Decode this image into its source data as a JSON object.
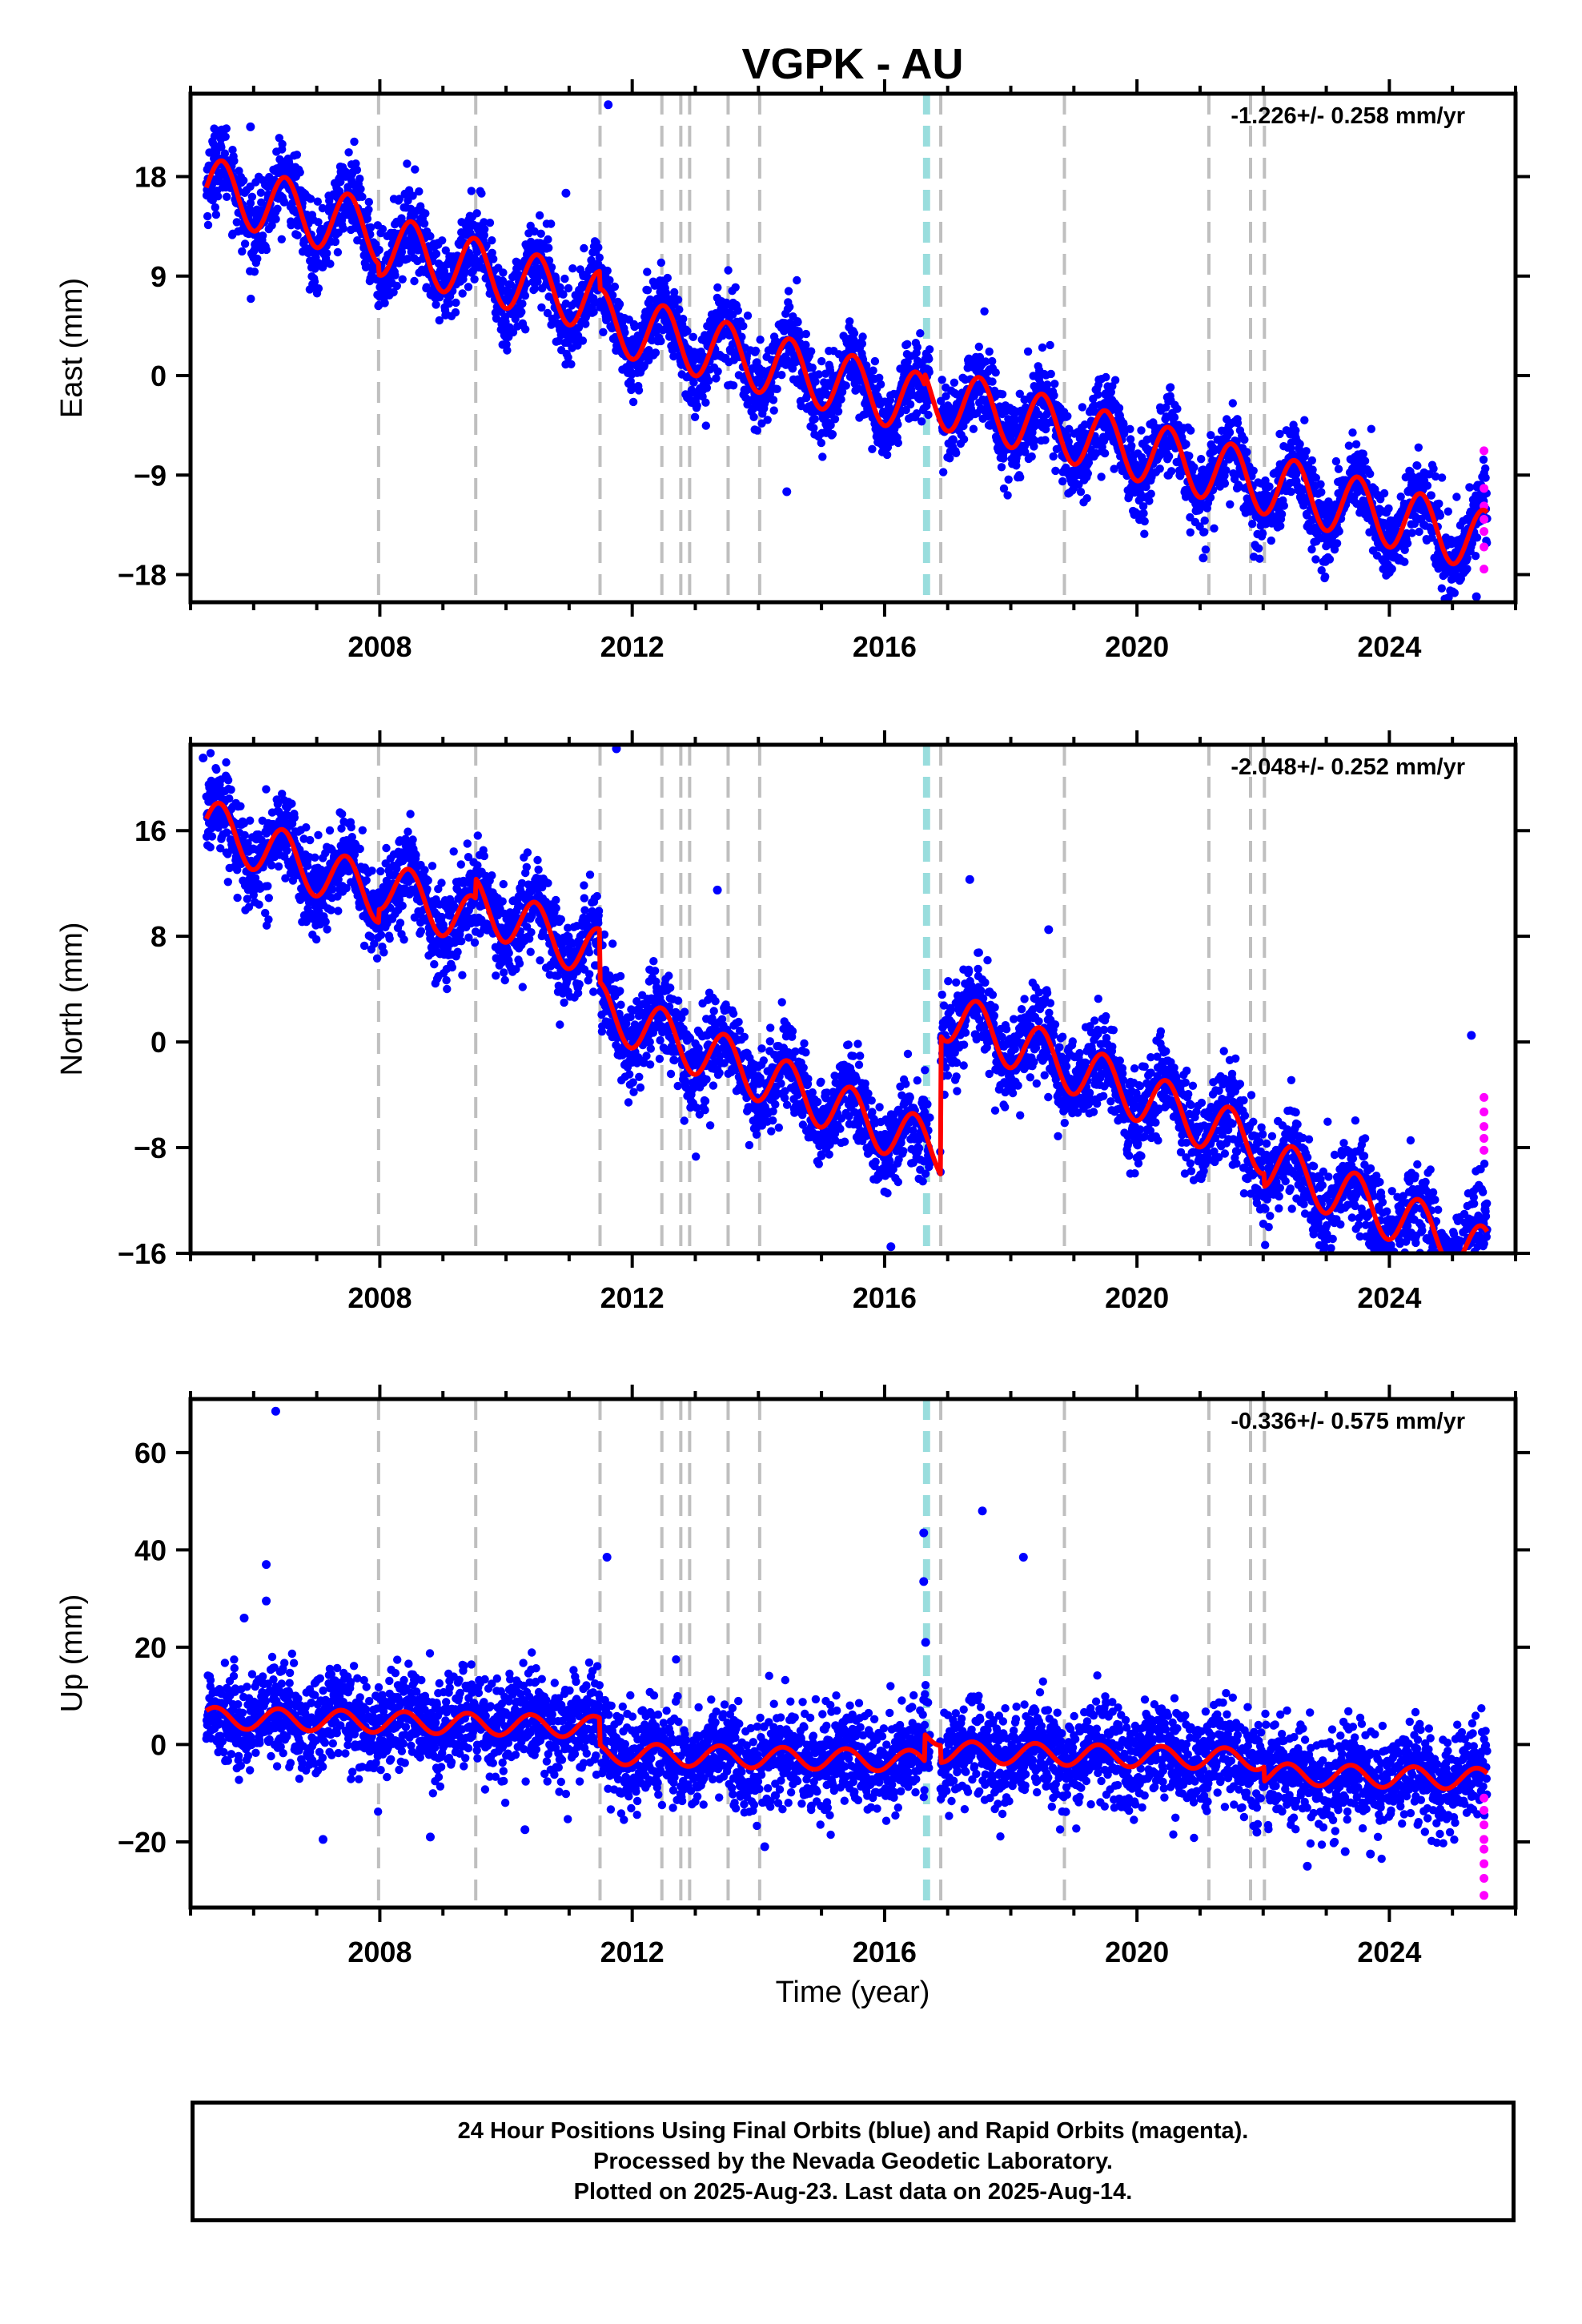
{
  "title": "VGPK - AU",
  "colors": {
    "final_orbits": "#0000ff",
    "rapid_orbits": "#ff00ff",
    "model_fit": "#ff0000",
    "event_line": "#bfbfbf",
    "equipment_change_line": "#99dddd"
  },
  "x_axis": {
    "label": "Time (year)",
    "range": [
      2005.0,
      2026.0
    ],
    "ticks": [
      2008,
      2012,
      2016,
      2020,
      2024
    ]
  },
  "event_lines": [
    2007.98,
    2009.52,
    2011.49,
    2012.47,
    2012.77,
    2012.91,
    2013.52,
    2014.02,
    2016.89,
    2018.85,
    2021.14,
    2021.8,
    2022.02
  ],
  "equipment_change_lines": [
    2016.64,
    2016.69
  ],
  "footer": {
    "line1": "24 Hour Positions Using Final Orbits (blue) and Rapid Orbits (magenta).",
    "line2": "Processed by the Nevada Geodetic Laboratory.",
    "line3": "Plotted on 2025-Aug-23. Last data on 2025-Aug-14."
  },
  "chart_data": [
    {
      "type": "scatter",
      "component": "east",
      "ylabel": "East (mm)",
      "rate": "-1.226+/- 0.258 mm/yr",
      "ylim": [
        -20.5,
        25.5
      ],
      "yticks": [
        -18,
        -9,
        0,
        9,
        18
      ],
      "x_start": 2005.25,
      "x_end": 2025.55,
      "model": {
        "base": 17.0,
        "trend": -1.5,
        "annual_amplitude": 2.8,
        "phase": 0.0,
        "offsets": [
          [
            2007.98,
            -1.0
          ],
          [
            2011.49,
            -1.6
          ],
          [
            2016.64,
            1.0
          ]
        ]
      },
      "scatter_spread": 1.8,
      "outliers": [
        [
          2005.95,
          22.5
        ],
        [
          2011.62,
          24.5
        ],
        [
          2010.95,
          16.5
        ],
        [
          2013.3,
          4.5
        ],
        [
          2014.45,
          -10.5
        ],
        [
          2021.05,
          -16.5
        ],
        [
          2025.38,
          -20.0
        ]
      ],
      "rapid_points": [
        [
          2025.5,
          -6.8
        ],
        [
          2025.5,
          -10.2
        ],
        [
          2025.5,
          -11.8
        ],
        [
          2025.5,
          -13.0
        ],
        [
          2025.5,
          -14.1
        ],
        [
          2025.5,
          -15.5
        ],
        [
          2025.5,
          -17.5
        ]
      ]
    },
    {
      "type": "scatter",
      "component": "north",
      "ylabel": "North (mm)",
      "rate": "-2.048+/- 0.252 mm/yr",
      "ylim": [
        -16.0,
        22.5
      ],
      "yticks": [
        -16,
        -8,
        0,
        8,
        16
      ],
      "x_start": 2005.25,
      "x_end": 2025.55,
      "model": {
        "base": 16.5,
        "trend": -2.0,
        "annual_amplitude": 2.0,
        "phase": 0.2,
        "offsets": [
          [
            2007.98,
            1.0
          ],
          [
            2009.52,
            1.5
          ],
          [
            2011.49,
            -4.0
          ],
          [
            2016.89,
            10.5
          ],
          [
            2022.02,
            -1.0
          ]
        ]
      },
      "scatter_spread": 1.7,
      "outliers": [
        [
          2005.2,
          21.5
        ],
        [
          2011.75,
          22.2
        ],
        [
          2013.35,
          11.5
        ],
        [
          2017.35,
          12.3
        ],
        [
          2018.6,
          8.5
        ],
        [
          2016.1,
          -15.5
        ],
        [
          2025.3,
          0.5
        ]
      ],
      "rapid_points": [
        [
          2025.5,
          -4.2
        ],
        [
          2025.5,
          -5.3
        ],
        [
          2025.5,
          -6.4
        ],
        [
          2025.5,
          -7.3
        ],
        [
          2025.5,
          -8.2
        ]
      ]
    },
    {
      "type": "scatter",
      "component": "up",
      "ylabel": "Up (mm)",
      "rate": "-0.336+/- 0.575 mm/yr",
      "ylim": [
        -33.5,
        71.0
      ],
      "yticks": [
        -20,
        0,
        20,
        40,
        60
      ],
      "x_start": 2005.25,
      "x_end": 2025.55,
      "model": {
        "base": 5.5,
        "trend": -0.3,
        "annual_amplitude": 2.2,
        "phase": 0.7,
        "offsets": [
          [
            2011.49,
            -5.5
          ],
          [
            2016.64,
            5.5
          ],
          [
            2016.89,
            -3.5
          ],
          [
            2022.02,
            -3.0
          ]
        ]
      },
      "scatter_spread": 5.0,
      "outliers": [
        [
          2006.35,
          68.5
        ],
        [
          2006.2,
          37.0
        ],
        [
          2006.2,
          29.5
        ],
        [
          2005.85,
          26.0
        ],
        [
          2011.6,
          38.5
        ],
        [
          2016.62,
          43.5
        ],
        [
          2016.62,
          33.5
        ],
        [
          2017.55,
          48.0
        ],
        [
          2018.2,
          38.5
        ],
        [
          2016.65,
          21.0
        ],
        [
          2007.1,
          -19.5
        ],
        [
          2008.8,
          -19.0
        ],
        [
          2014.1,
          -21.0
        ],
        [
          2022.7,
          -25.0
        ],
        [
          2023.3,
          -22.0
        ],
        [
          2023.7,
          -22.5
        ],
        [
          2021.9,
          -18.0
        ],
        [
          2010.3,
          -17.5
        ]
      ],
      "rapid_points": [
        [
          2025.5,
          -11.0
        ],
        [
          2025.5,
          -13.5
        ],
        [
          2025.5,
          -16.5
        ],
        [
          2025.5,
          -19.5
        ],
        [
          2025.5,
          -21.5
        ],
        [
          2025.5,
          -24.5
        ],
        [
          2025.5,
          -27.5
        ],
        [
          2025.5,
          -31.0
        ]
      ]
    }
  ]
}
